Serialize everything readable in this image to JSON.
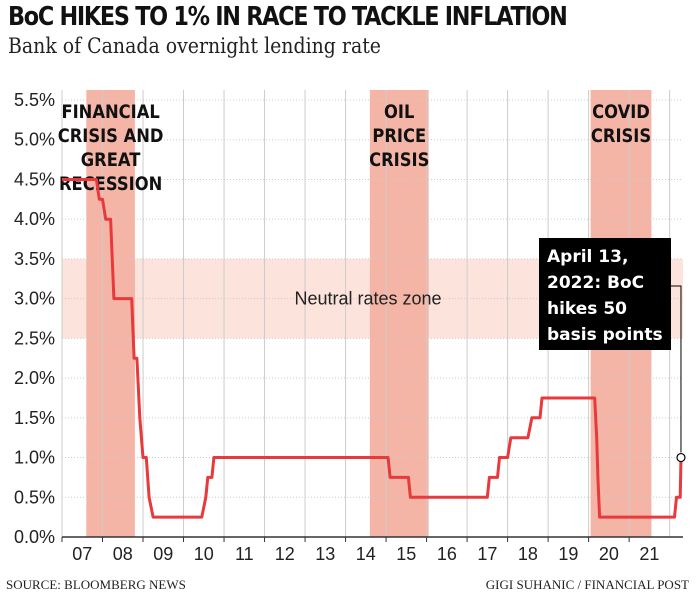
{
  "header": {
    "title": "BoC HIKES TO 1% IN RACE TO TACKLE INFLATION",
    "subtitle": "Bank of Canada overnight lending rate"
  },
  "footer": {
    "source": "SOURCE: BLOOMBERG NEWS",
    "credit": "GIGI SUHANIC / FINANCIAL POST"
  },
  "colors": {
    "line": "#e8393c",
    "shade": "#f4b4a6",
    "neutral_zone": "#fce3dc",
    "gridline": "#cccccc",
    "annotation_bg": "#000000"
  },
  "chart_data": {
    "type": "line",
    "title": "BoC HIKES TO 1% IN RACE TO TACKLE INFLATION",
    "subtitle": "Bank of Canada overnight lending rate",
    "xlabel": "",
    "ylabel": "",
    "x_range": [
      2007,
      2022.33
    ],
    "ylim": [
      0,
      5.5
    ],
    "y_ticks": [
      "5.5%",
      "5.0%",
      "4.5%",
      "4.0%",
      "3.5%",
      "3.0%",
      "2.5%",
      "2.0%",
      "1.5%",
      "1.0%",
      "0.5%",
      "0.0%"
    ],
    "x_tick_labels": [
      "07",
      "08",
      "09",
      "10",
      "11",
      "12",
      "13",
      "14",
      "15",
      "16",
      "17",
      "18",
      "19",
      "20",
      "21"
    ],
    "grid": true,
    "shaded_periods": [
      {
        "label_lines": [
          "FINANCIAL",
          "CRISIS AND",
          "GREAT",
          "RECESSION"
        ],
        "start": 2007.6,
        "end": 2008.8
      },
      {
        "label_lines": [
          "OIL",
          "PRICE",
          "CRISIS"
        ],
        "start": 2014.6,
        "end": 2016.05
      },
      {
        "label_lines": [
          "COVID",
          "CRISIS"
        ],
        "start": 2020.05,
        "end": 2021.55
      }
    ],
    "neutral_band": {
      "label": "Neutral rates zone",
      "from": 2.5,
      "to": 3.5
    },
    "annotation": {
      "lines": [
        "April 13,",
        "2022: BoC",
        "hikes 50",
        "basis points"
      ],
      "x": 2022.28,
      "y": 1.0
    },
    "series": [
      {
        "values": [
          [
            2007.0,
            4.5
          ],
          [
            2007.85,
            4.5
          ],
          [
            2007.92,
            4.25
          ],
          [
            2008.0,
            4.25
          ],
          [
            2008.08,
            4.0
          ],
          [
            2008.2,
            4.0
          ],
          [
            2008.28,
            3.0
          ],
          [
            2008.72,
            3.0
          ],
          [
            2008.78,
            2.25
          ],
          [
            2008.85,
            2.25
          ],
          [
            2008.92,
            1.5
          ],
          [
            2009.0,
            1.0
          ],
          [
            2009.08,
            1.0
          ],
          [
            2009.15,
            0.5
          ],
          [
            2009.25,
            0.25
          ],
          [
            2010.45,
            0.25
          ],
          [
            2010.55,
            0.5
          ],
          [
            2010.6,
            0.75
          ],
          [
            2010.7,
            0.75
          ],
          [
            2010.75,
            1.0
          ],
          [
            2015.05,
            1.0
          ],
          [
            2015.1,
            0.75
          ],
          [
            2015.55,
            0.75
          ],
          [
            2015.6,
            0.5
          ],
          [
            2017.5,
            0.5
          ],
          [
            2017.55,
            0.75
          ],
          [
            2017.75,
            0.75
          ],
          [
            2017.8,
            1.0
          ],
          [
            2018.0,
            1.0
          ],
          [
            2018.08,
            1.25
          ],
          [
            2018.5,
            1.25
          ],
          [
            2018.6,
            1.5
          ],
          [
            2018.8,
            1.5
          ],
          [
            2018.85,
            1.75
          ],
          [
            2020.15,
            1.75
          ],
          [
            2020.2,
            1.25
          ],
          [
            2020.23,
            0.75
          ],
          [
            2020.27,
            0.25
          ],
          [
            2022.12,
            0.25
          ],
          [
            2022.17,
            0.5
          ],
          [
            2022.26,
            0.5
          ],
          [
            2022.28,
            1.0
          ]
        ]
      }
    ]
  }
}
